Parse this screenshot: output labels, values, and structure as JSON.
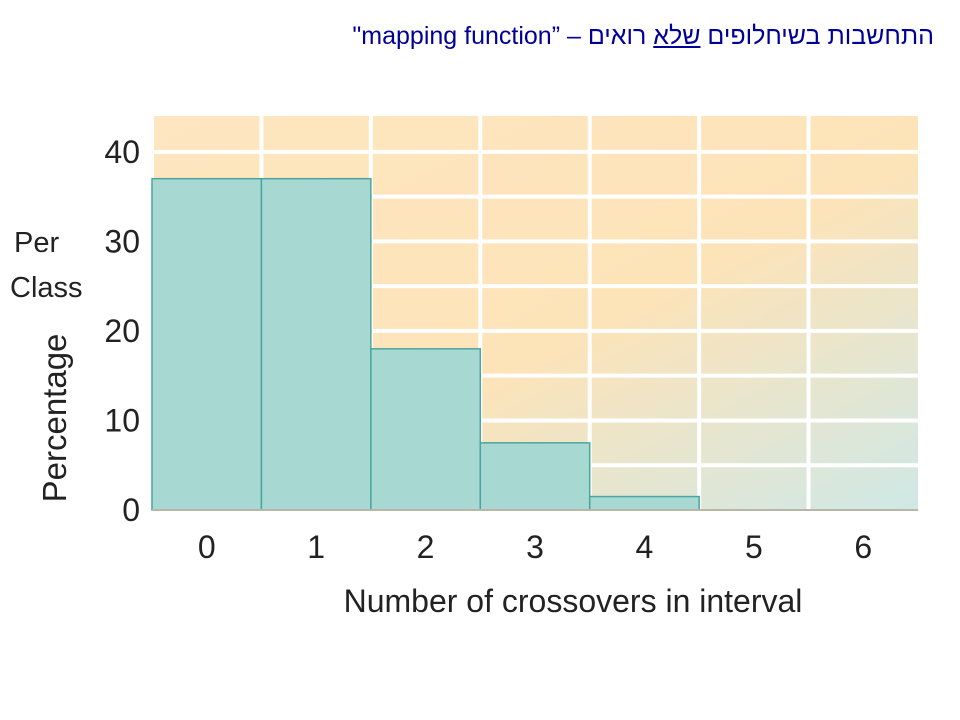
{
  "slide": {
    "title_pre": "התחשבות בשיחלופים ",
    "title_underlined": "שלא",
    "title_post": " רואים – ”mapping function\""
  },
  "colors": {
    "title": "#000099",
    "bar_fill": "#a8d8d2",
    "bar_stroke": "#4aa69c",
    "bg_warm": "#fde6c0",
    "bg_cool": "#cfe8e6",
    "grid": "#ffffff"
  },
  "chart_data": {
    "type": "bar",
    "categories": [
      "0",
      "1",
      "2",
      "3",
      "4",
      "5",
      "6"
    ],
    "values": [
      37,
      37,
      18,
      7.5,
      1.5,
      0,
      0
    ],
    "ylabel_lines": [
      "Per",
      "Class",
      "Percentage"
    ],
    "xlabel": "Number of crossovers in interval",
    "ylim": [
      0,
      44
    ],
    "yticks": [
      0,
      10,
      20,
      30,
      40
    ],
    "grid": true,
    "legend": "none"
  }
}
